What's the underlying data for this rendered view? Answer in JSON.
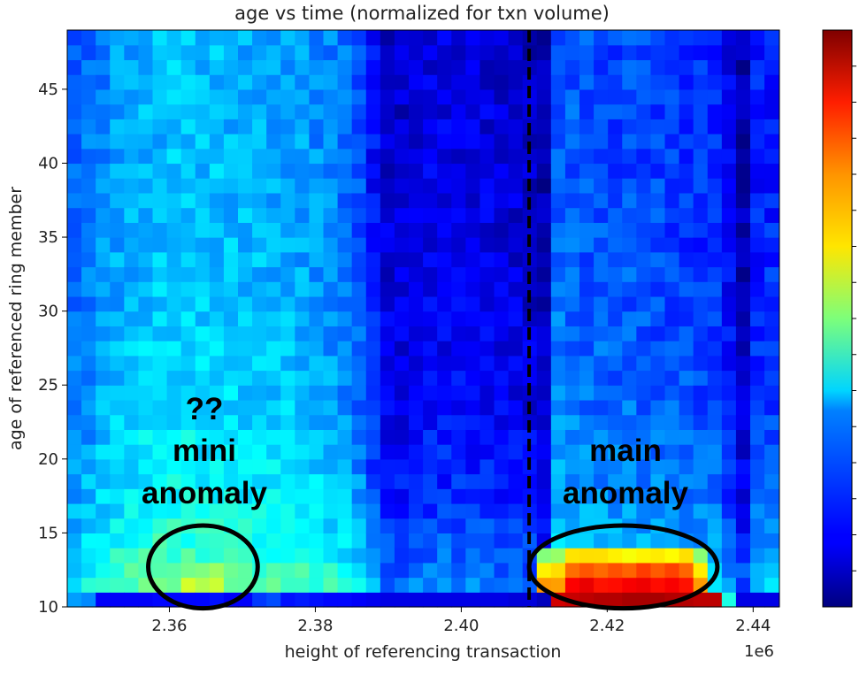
{
  "chart_data": {
    "type": "heatmap",
    "title": "age vs time (normalized for txn volume)",
    "xlabel": "height of referencing transaction",
    "ylabel": "age of referenced ring member",
    "x_offset_label": "1e6",
    "x_ticks": [
      2.36,
      2.38,
      2.4,
      2.42,
      2.44
    ],
    "x_tick_labels": [
      "2.36",
      "2.38",
      "2.40",
      "2.42",
      "2.44"
    ],
    "y_ticks": [
      10,
      15,
      20,
      25,
      30,
      35,
      40,
      45
    ],
    "y_tick_labels": [
      "10",
      "15",
      "20",
      "25",
      "30",
      "35",
      "40",
      "45"
    ],
    "xlim": [
      2.346,
      2.4436
    ],
    "ylim": [
      10,
      49
    ],
    "colormap": "jet",
    "colorbar": true,
    "vline": {
      "x": 2.4093,
      "style": "dashed",
      "color": "#000000"
    },
    "grid": false,
    "cells": {
      "x_start": 2.346,
      "x_step": 0.00195,
      "columns": 50,
      "y_start": 10,
      "y_step": 1,
      "rows": 39,
      "z_range": [
        0,
        1
      ],
      "column_intensity": [
        0.36,
        0.4,
        0.44,
        0.47,
        0.49,
        0.51,
        0.52,
        0.53,
        0.53,
        0.52,
        0.52,
        0.51,
        0.5,
        0.5,
        0.49,
        0.48,
        0.47,
        0.45,
        0.43,
        0.4,
        0.34,
        0.24,
        0.15,
        0.14,
        0.16,
        0.18,
        0.18,
        0.18,
        0.17,
        0.17,
        0.16,
        0.15,
        0.13,
        0.09,
        0.38,
        0.36,
        0.35,
        0.34,
        0.33,
        0.34,
        0.33,
        0.32,
        0.31,
        0.3,
        0.29,
        0.29,
        0.2,
        0.09,
        0.26,
        0.27
      ],
      "age_bottom_level": 0.27,
      "age_top_level": 0.0,
      "age_decay": 10,
      "bottom_row": [
        0.28,
        0.26,
        0.12,
        0.12,
        0.12,
        0.12,
        0.13,
        0.13,
        0.13,
        0.13,
        0.14,
        0.12,
        0.12,
        0.18,
        0.2,
        0.14,
        0.15,
        0.14,
        0.13,
        0.13,
        0.12,
        0.11,
        0.1,
        0.1,
        0.1,
        0.1,
        0.1,
        0.1,
        0.1,
        0.1,
        0.1,
        0.09,
        0.09,
        0.06,
        0.92,
        0.93,
        0.94,
        0.95,
        0.95,
        0.96,
        0.96,
        0.96,
        0.95,
        0.95,
        0.94,
        0.94,
        0.4,
        0.1,
        0.1,
        0.1
      ],
      "hotspots": [
        {
          "x_range": [
            2.4105,
            2.4345
          ],
          "y_range": [
            11,
            14
          ],
          "peak": 0.88
        },
        {
          "x_range": [
            2.3616,
            2.3675
          ],
          "y_range": [
            11,
            14
          ],
          "peak": 0.56
        }
      ]
    },
    "annotations": [
      {
        "text_lines": [
          "??",
          "mini",
          "anomaly"
        ],
        "ellipse": {
          "cx": 2.3646,
          "cy": 12.7,
          "rx": 0.0075,
          "ry": 2.8
        }
      },
      {
        "text_lines": [
          "main",
          "anomaly"
        ],
        "ellipse": {
          "cx": 2.4222,
          "cy": 12.7,
          "rx": 0.0129,
          "ry": 2.8
        }
      }
    ]
  }
}
